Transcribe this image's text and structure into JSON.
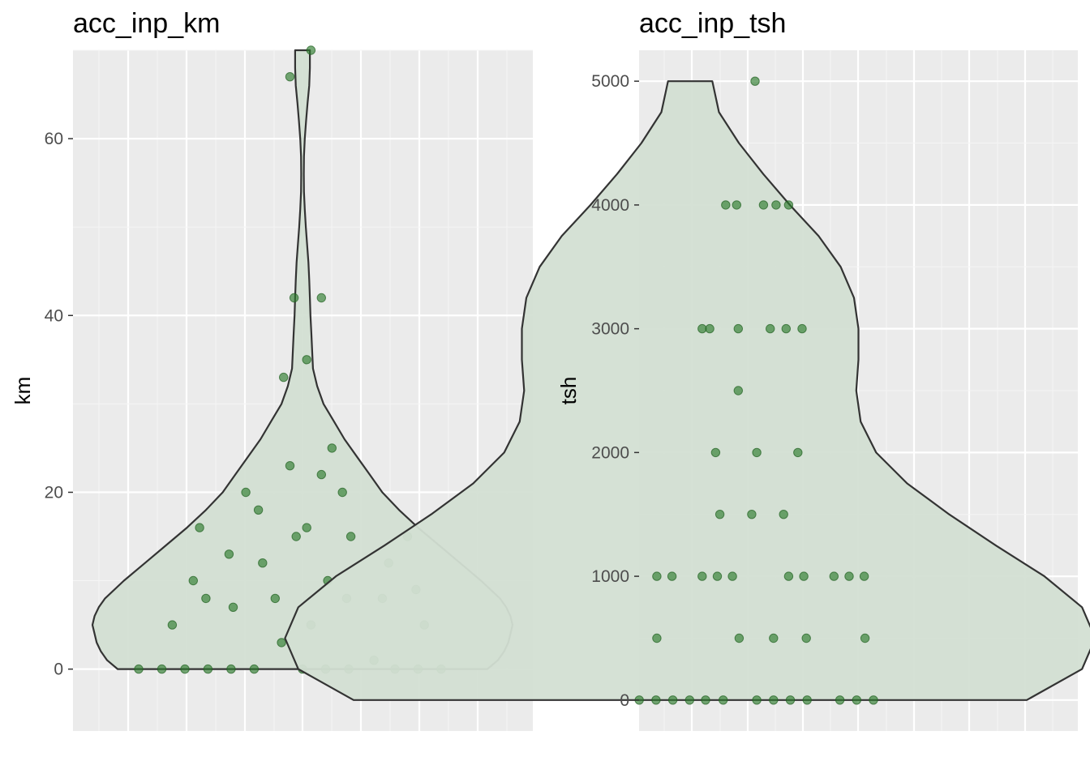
{
  "chart_data": [
    {
      "type": "violin",
      "title": "acc_inp_km",
      "ylabel": "km",
      "xlabel": "",
      "ylim": [
        -7,
        70
      ],
      "yticks": [
        0,
        20,
        40,
        60
      ],
      "grid": true,
      "points": [
        {
          "x": -0.78,
          "y": 0
        },
        {
          "x": -0.67,
          "y": 0
        },
        {
          "x": -0.56,
          "y": 0
        },
        {
          "x": -0.45,
          "y": 0
        },
        {
          "x": -0.34,
          "y": 0
        },
        {
          "x": -0.23,
          "y": 0
        },
        {
          "x": 0.0,
          "y": 0
        },
        {
          "x": 0.11,
          "y": 0
        },
        {
          "x": 0.22,
          "y": 0
        },
        {
          "x": 0.44,
          "y": 0
        },
        {
          "x": 0.55,
          "y": 0
        },
        {
          "x": 0.66,
          "y": 0
        },
        {
          "x": 0.34,
          "y": 1
        },
        {
          "x": -0.1,
          "y": 3
        },
        {
          "x": -0.62,
          "y": 5
        },
        {
          "x": 0.04,
          "y": 5
        },
        {
          "x": 0.58,
          "y": 5
        },
        {
          "x": -0.33,
          "y": 7
        },
        {
          "x": -0.46,
          "y": 8
        },
        {
          "x": -0.13,
          "y": 8
        },
        {
          "x": 0.21,
          "y": 8
        },
        {
          "x": 0.38,
          "y": 8
        },
        {
          "x": 0.54,
          "y": 9
        },
        {
          "x": -0.52,
          "y": 10
        },
        {
          "x": 0.12,
          "y": 10
        },
        {
          "x": -0.19,
          "y": 12
        },
        {
          "x": 0.41,
          "y": 12
        },
        {
          "x": -0.35,
          "y": 13
        },
        {
          "x": -0.03,
          "y": 15
        },
        {
          "x": 0.23,
          "y": 15
        },
        {
          "x": 0.5,
          "y": 15
        },
        {
          "x": -0.49,
          "y": 16
        },
        {
          "x": 0.02,
          "y": 16
        },
        {
          "x": -0.21,
          "y": 18
        },
        {
          "x": -0.27,
          "y": 20
        },
        {
          "x": 0.19,
          "y": 20
        },
        {
          "x": 0.09,
          "y": 22
        },
        {
          "x": -0.06,
          "y": 23
        },
        {
          "x": 0.14,
          "y": 25
        },
        {
          "x": -0.09,
          "y": 33
        },
        {
          "x": 0.02,
          "y": 35
        },
        {
          "x": -0.04,
          "y": 42
        },
        {
          "x": 0.09,
          "y": 42
        },
        {
          "x": -0.06,
          "y": 67
        },
        {
          "x": 0.04,
          "y": 70
        }
      ],
      "violin": {
        "y": [
          0,
          1,
          2,
          3,
          4,
          5,
          6,
          7,
          8,
          10,
          12,
          14,
          16,
          18,
          20,
          22,
          24,
          26,
          28,
          30,
          32,
          34,
          36,
          38,
          40,
          42,
          44,
          46,
          48,
          50,
          52,
          54,
          56,
          58,
          60,
          62,
          64,
          66,
          68,
          70
        ],
        "half_width": [
          0.88,
          0.93,
          0.96,
          0.98,
          0.99,
          1.0,
          0.99,
          0.97,
          0.94,
          0.85,
          0.75,
          0.65,
          0.55,
          0.46,
          0.38,
          0.32,
          0.26,
          0.2,
          0.15,
          0.1,
          0.07,
          0.05,
          0.046,
          0.042,
          0.038,
          0.035,
          0.032,
          0.028,
          0.022,
          0.016,
          0.011,
          0.007,
          0.006,
          0.007,
          0.011,
          0.017,
          0.024,
          0.032,
          0.035,
          0.035
        ]
      }
    },
    {
      "type": "violin",
      "title": "acc_inp_tsh",
      "ylabel": "tsh",
      "xlabel": "",
      "ylim": [
        -250,
        5250
      ],
      "yticks": [
        0,
        1000,
        2000,
        3000,
        4000,
        5000
      ],
      "grid": true,
      "points": [
        {
          "x": -0.8,
          "y": 0
        },
        {
          "x": -0.6,
          "y": 0
        },
        {
          "x": -0.4,
          "y": 0
        },
        {
          "x": -0.2,
          "y": 0
        },
        {
          "x": -0.01,
          "y": 0
        },
        {
          "x": 0.2,
          "y": 0
        },
        {
          "x": 0.6,
          "y": 0
        },
        {
          "x": 0.8,
          "y": 0
        },
        {
          "x": 1.0,
          "y": 0
        },
        {
          "x": 1.2,
          "y": 0
        },
        {
          "x": 1.59,
          "y": 0
        },
        {
          "x": 1.79,
          "y": 0
        },
        {
          "x": 1.99,
          "y": 0
        },
        {
          "x": -0.59,
          "y": 500
        },
        {
          "x": 0.39,
          "y": 500
        },
        {
          "x": 0.8,
          "y": 500
        },
        {
          "x": 1.19,
          "y": 500
        },
        {
          "x": 1.89,
          "y": 500
        },
        {
          "x": -0.59,
          "y": 1000
        },
        {
          "x": -0.41,
          "y": 1000
        },
        {
          "x": -0.05,
          "y": 1000
        },
        {
          "x": 0.13,
          "y": 1000
        },
        {
          "x": 0.31,
          "y": 1000
        },
        {
          "x": 0.98,
          "y": 1000
        },
        {
          "x": 1.16,
          "y": 1000
        },
        {
          "x": 1.52,
          "y": 1000
        },
        {
          "x": 1.7,
          "y": 1000
        },
        {
          "x": 1.88,
          "y": 1000
        },
        {
          "x": 0.16,
          "y": 1500
        },
        {
          "x": 0.54,
          "y": 1500
        },
        {
          "x": 0.92,
          "y": 1500
        },
        {
          "x": 0.11,
          "y": 2000
        },
        {
          "x": 0.6,
          "y": 2000
        },
        {
          "x": 1.09,
          "y": 2000
        },
        {
          "x": 0.38,
          "y": 2500
        },
        {
          "x": -0.05,
          "y": 3000
        },
        {
          "x": 0.04,
          "y": 3000
        },
        {
          "x": 0.38,
          "y": 3000
        },
        {
          "x": 0.76,
          "y": 3000
        },
        {
          "x": 0.95,
          "y": 3000
        },
        {
          "x": 1.14,
          "y": 3000
        },
        {
          "x": 0.23,
          "y": 4000
        },
        {
          "x": 0.36,
          "y": 4000
        },
        {
          "x": 0.68,
          "y": 4000
        },
        {
          "x": 0.83,
          "y": 4000
        },
        {
          "x": 0.98,
          "y": 4000
        },
        {
          "x": 0.58,
          "y": 5000
        }
      ],
      "violin": {
        "y": [
          0,
          250,
          500,
          750,
          1000,
          1250,
          1500,
          1750,
          2000,
          2250,
          2500,
          2750,
          3000,
          3250,
          3500,
          3750,
          4000,
          4250,
          4500,
          4750,
          5000
        ],
        "half_width": [
          1.52,
          1.77,
          1.83,
          1.77,
          1.6,
          1.38,
          1.17,
          0.98,
          0.84,
          0.77,
          0.75,
          0.76,
          0.76,
          0.74,
          0.68,
          0.58,
          0.45,
          0.33,
          0.22,
          0.13,
          0.1
        ]
      }
    }
  ]
}
